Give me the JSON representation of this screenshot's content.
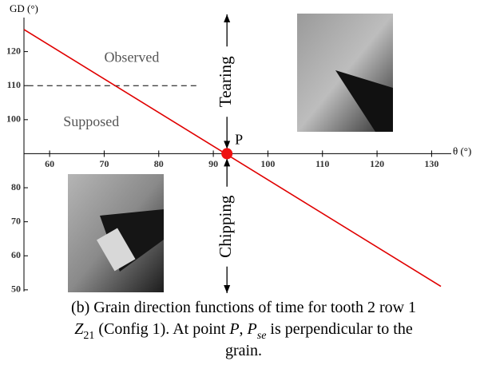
{
  "chart_data": {
    "type": "line",
    "x_label": "θ (°)",
    "y_label": "GD (°)",
    "xlim": [
      55.3,
      133.6
    ],
    "ylim": [
      49.5,
      130
    ],
    "xticks": [
      60,
      70,
      80,
      90,
      100,
      110,
      120,
      130
    ],
    "yticks": [
      50,
      60,
      70,
      80,
      100,
      110,
      120
    ],
    "x_axis_at": 90,
    "series": [
      {
        "color": "#e00000",
        "x": [
          55.3,
          131.7
        ],
        "values": [
          126.5,
          51
        ]
      }
    ],
    "threshold": {
      "y": 110,
      "x": [
        56,
        87.5
      ],
      "style": "dashed"
    },
    "point": {
      "x": 92.5,
      "y": 90,
      "label": "P",
      "color": "#ee1111"
    },
    "annotations": [
      {
        "text": "Observed",
        "x": 70,
        "y": 118
      },
      {
        "text": "Supposed",
        "x": 62.5,
        "y": 99
      }
    ],
    "regions": {
      "above": "Tearing",
      "below": "Chipping"
    },
    "caption": [
      [
        {
          "text": "(b) Grain direction functions of time for tooth 2 row 1",
          "style": "normal"
        }
      ],
      [
        {
          "text": "Z",
          "style": "italic"
        },
        {
          "text": "21",
          "style": "sub"
        },
        {
          "text": " (Config 1). At point ",
          "style": "normal"
        },
        {
          "text": "P",
          "style": "italic"
        },
        {
          "text": ", ",
          "style": "normal"
        },
        {
          "text": "P",
          "style": "italic"
        },
        {
          "text": "se",
          "style": "italic-sub"
        },
        {
          "text": " is perpendicular to the",
          "style": "normal"
        }
      ],
      [
        {
          "text": "grain.",
          "style": "normal"
        }
      ]
    ]
  }
}
